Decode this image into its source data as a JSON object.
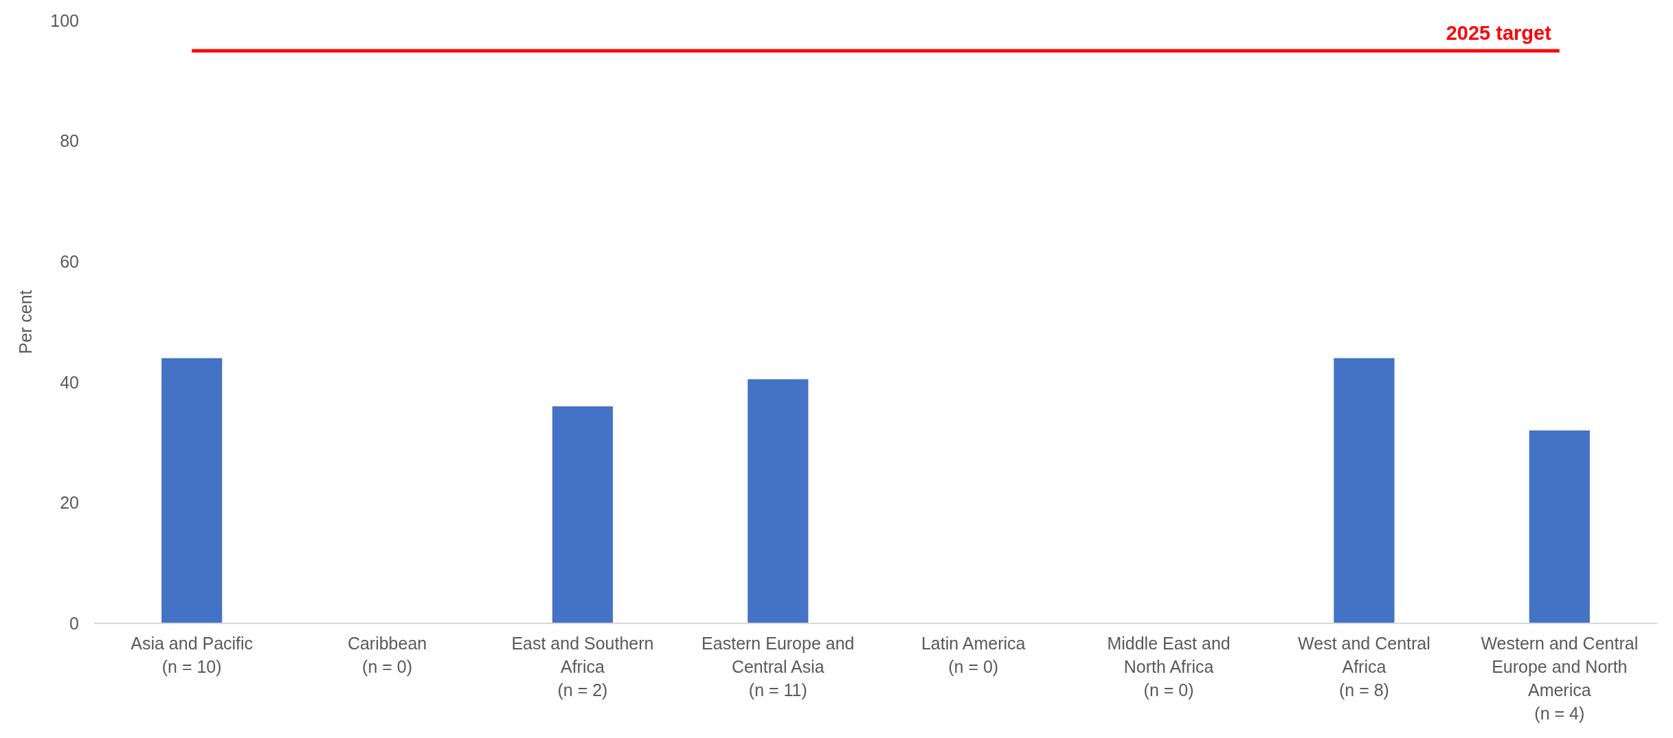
{
  "chart_data": {
    "type": "bar",
    "ylabel": "Per cent",
    "categories": [
      "Asia and Pacific\n(n = 10)",
      "Caribbean\n(n = 0)",
      "East and Southern\nAfrica\n(n = 2)",
      "Eastern Europe and\nCentral Asia\n(n = 11)",
      "Latin America\n(n = 0)",
      "Middle East and\nNorth Africa\n(n = 0)",
      "West and Central\nAfrica\n(n = 8)",
      "Western and Central\nEurope and North\nAmerica\n(n = 4)"
    ],
    "values": [
      44,
      null,
      36,
      40.5,
      null,
      null,
      44,
      32
    ],
    "color": "#4472c4",
    "ylim": [
      0,
      100
    ],
    "yticks": [
      0,
      20,
      40,
      60,
      80,
      100
    ],
    "grid": false,
    "ref_lines": [
      {
        "axis": "y",
        "value": 95,
        "label": "2025 target",
        "color": "#ff0000"
      }
    ]
  }
}
